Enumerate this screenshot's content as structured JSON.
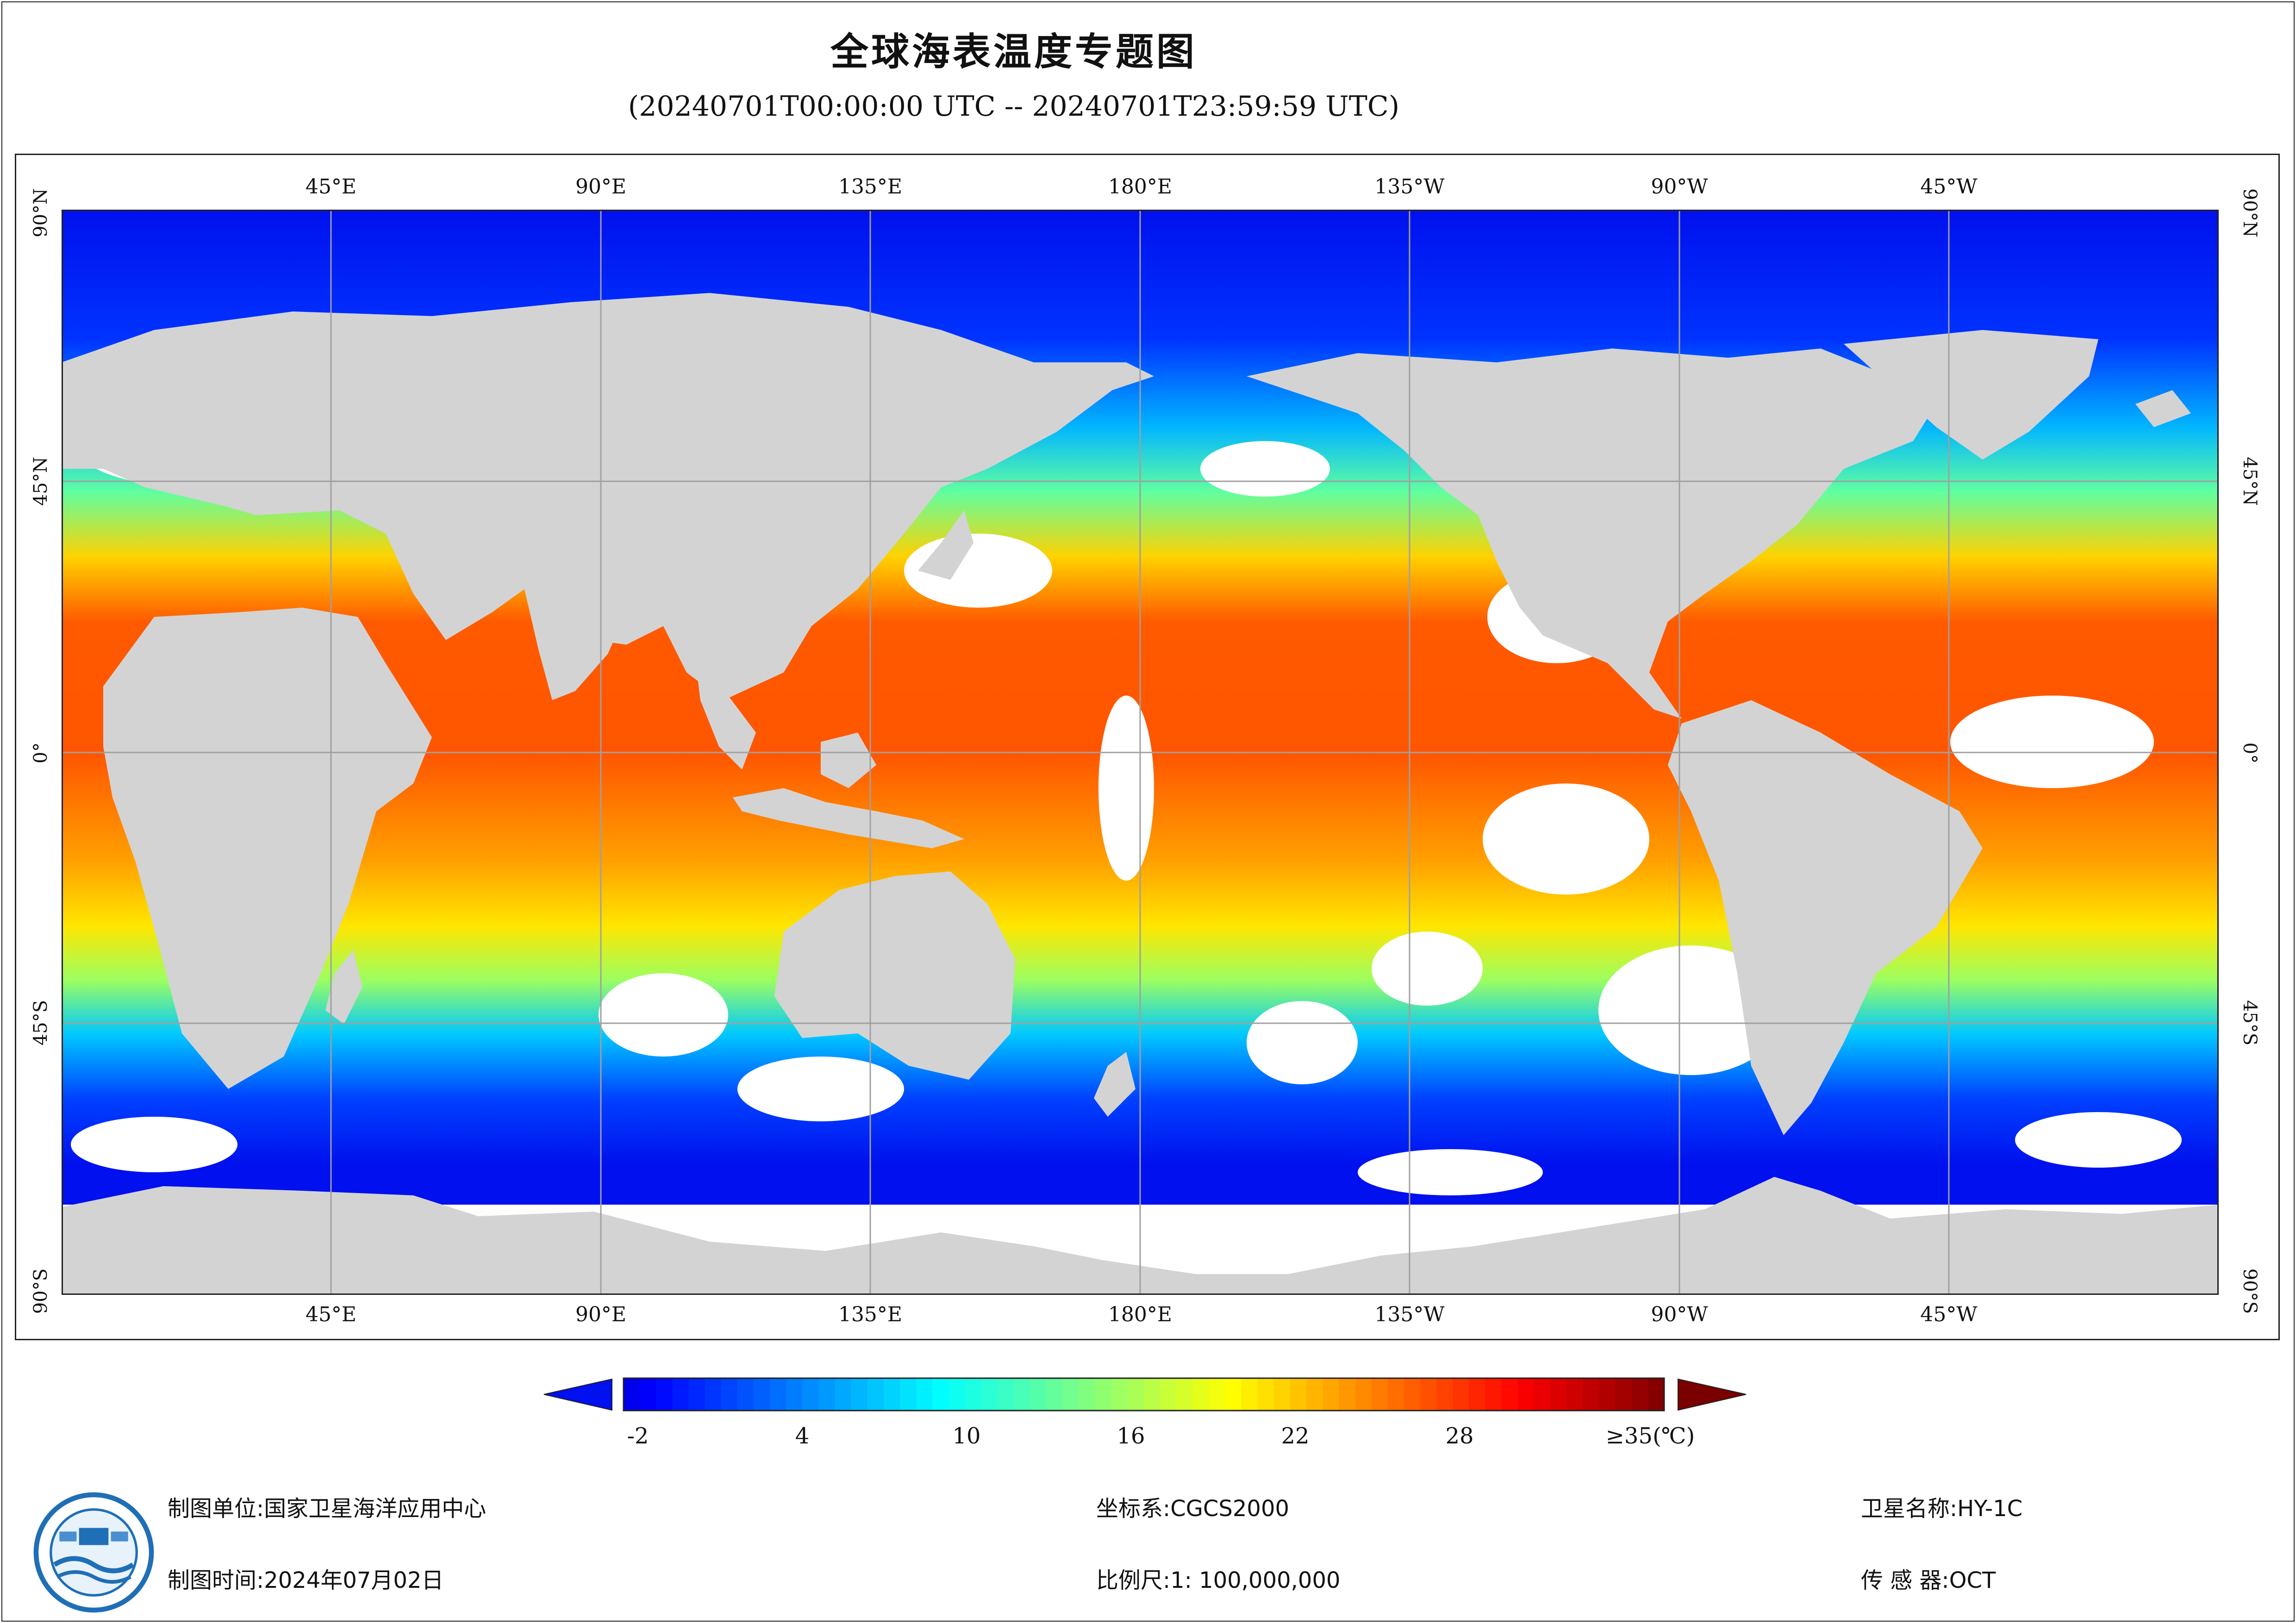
{
  "title": "全球海表温度专题图",
  "subtitle": "(20240701T00:00:00 UTC -- 20240701T23:59:59 UTC)",
  "map": {
    "lon_ticks": [
      "45°E",
      "90°E",
      "135°E",
      "180°E",
      "135°W",
      "90°W",
      "45°W"
    ],
    "lat_ticks": [
      "90°N",
      "45°N",
      "0°",
      "45°S",
      "90°S"
    ],
    "colors": {
      "land": "#d3d3d3",
      "no_data": "#ffffff",
      "grid": "#a0a0a0"
    }
  },
  "colorbar": {
    "tick_labels": [
      "-2",
      "4",
      "10",
      "16",
      "22",
      "28",
      "≥35(℃)"
    ],
    "tick_values": [
      -2,
      4,
      10,
      16,
      22,
      28,
      35
    ],
    "range": [
      -3,
      35
    ],
    "palette": "jet",
    "under_color": "#0010ee",
    "over_color": "#7a0000"
  },
  "footer": {
    "org_label": "制图单位:",
    "org": "国家卫星海洋应用中心",
    "time_label": "制图时间:",
    "time": "2024年07月02日",
    "crs_label": "坐标系:",
    "crs": "CGCS2000",
    "scale_label": "比例尺:",
    "scale": "1: 100,000,000",
    "satellite_label": "卫星名称:",
    "satellite": "HY-1C",
    "sensor_label": "传 感 器:",
    "sensor": "OCT"
  },
  "logo_icon": "nsoas-logo-icon"
}
